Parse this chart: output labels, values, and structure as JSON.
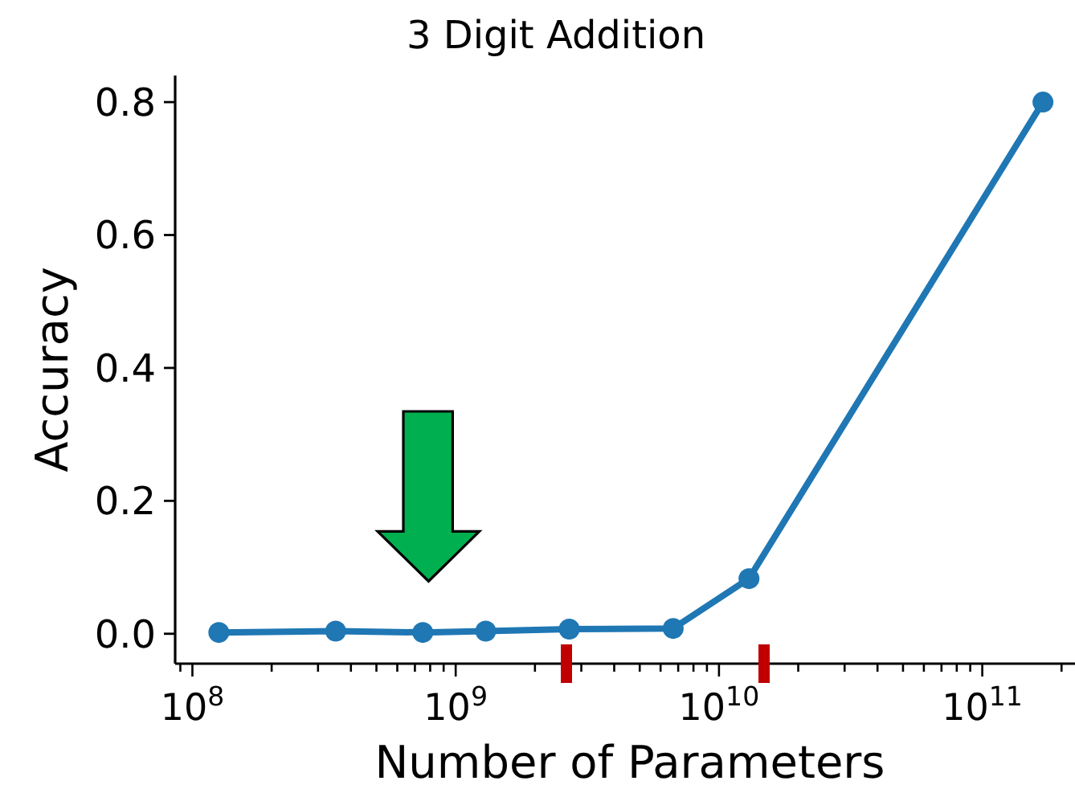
{
  "chart_data": {
    "type": "line",
    "title": "3 Digit Addition",
    "xlabel": "Number of Parameters",
    "ylabel": "Accuracy",
    "log": "x",
    "marker": "circle",
    "x": [
      126000000.0,
      350000000.0,
      750000000.0,
      1300000000.0,
      2700000000.0,
      6700000000.0,
      13000000000.0,
      170000000000.0
    ],
    "series": [
      {
        "color": "#1f77b4",
        "values": [
          0.002,
          0.004,
          0.002,
          0.004,
          0.007,
          0.008,
          0.083,
          0.8
        ]
      }
    ],
    "xlim": [
      86000000.0,
      225000000000.0
    ],
    "ylim": [
      -0.045,
      0.84
    ],
    "xticks": [
      {
        "value": 90000000.0,
        "label": null
      },
      {
        "value": 100000000.0,
        "label": "10$^{8}$"
      },
      {
        "value": 200000000.0,
        "label": null
      },
      {
        "value": 300000000.0,
        "label": null
      },
      {
        "value": 400000000.0,
        "label": null
      },
      {
        "value": 500000000.0,
        "label": null
      },
      {
        "value": 600000000.0,
        "label": null
      },
      {
        "value": 700000000.0,
        "label": null
      },
      {
        "value": 800000000.0,
        "label": null
      },
      {
        "value": 900000000.0,
        "label": null
      },
      {
        "value": 1000000000.0,
        "label": "10$^{9}$"
      },
      {
        "value": 2000000000.0,
        "label": null
      },
      {
        "value": 3000000000.0,
        "label": null
      },
      {
        "value": 4000000000.0,
        "label": null
      },
      {
        "value": 5000000000.0,
        "label": null
      },
      {
        "value": 6000000000.0,
        "label": null
      },
      {
        "value": 7000000000.0,
        "label": null
      },
      {
        "value": 8000000000.0,
        "label": null
      },
      {
        "value": 9000000000.0,
        "label": null
      },
      {
        "value": 10000000000.0,
        "label": "10$^{10}$"
      },
      {
        "value": 20000000000.0,
        "label": null
      },
      {
        "value": 30000000000.0,
        "label": null
      },
      {
        "value": 40000000000.0,
        "label": null
      },
      {
        "value": 50000000000.0,
        "label": null
      },
      {
        "value": 60000000000.0,
        "label": null
      },
      {
        "value": 70000000000.0,
        "label": null
      },
      {
        "value": 80000000000.0,
        "label": null
      },
      {
        "value": 90000000000.0,
        "label": null
      },
      {
        "value": 100000000000.0,
        "label": "10$^{11}$"
      },
      {
        "value": 200000000000.0,
        "label": null
      }
    ],
    "yticks": [
      {
        "value": 0,
        "label": "0.0"
      },
      {
        "value": 0.2,
        "label": "0.2"
      },
      {
        "value": 0.4,
        "label": "0.4"
      },
      {
        "value": 0.6,
        "label": "0.6"
      },
      {
        "value": 0.8,
        "label": "0.8"
      }
    ]
  }
}
